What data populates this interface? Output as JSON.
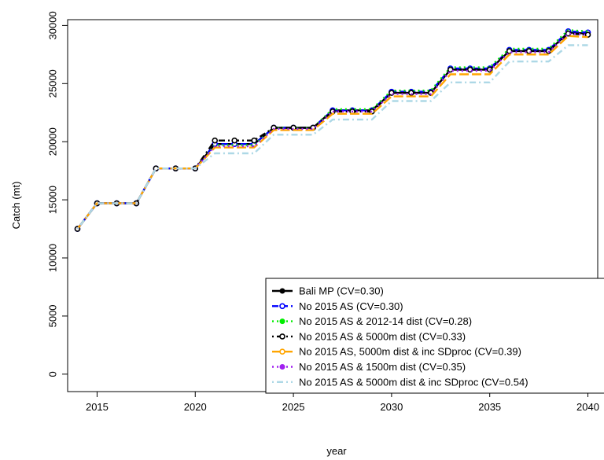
{
  "chart_data": {
    "type": "line",
    "title": "",
    "xlabel": "year",
    "ylabel": "Catch (mt)",
    "xlim": [
      2013.5,
      2040.5
    ],
    "ylim": [
      -1500,
      30500
    ],
    "x_ticks": [
      2015,
      2020,
      2025,
      2030,
      2035,
      2040
    ],
    "y_ticks": [
      0,
      5000,
      10000,
      15000,
      20000,
      25000,
      30000
    ],
    "grid": false,
    "legend_position": "bottom-right",
    "x": [
      2014,
      2015,
      2016,
      2017,
      2018,
      2019,
      2020,
      2021,
      2022,
      2023,
      2024,
      2025,
      2026,
      2027,
      2028,
      2029,
      2030,
      2031,
      2032,
      2033,
      2034,
      2035,
      2036,
      2037,
      2038,
      2039,
      2040
    ],
    "series": [
      {
        "name": "Bali MP (CV=0.30)",
        "color": "#000000",
        "dash": "solid",
        "marker": "filled-circle",
        "values": [
          12500,
          14700,
          14700,
          14700,
          17700,
          17700,
          17700,
          19800,
          19800,
          19800,
          21200,
          21200,
          21200,
          22700,
          22700,
          22700,
          24200,
          24200,
          24200,
          26200,
          26200,
          26200,
          27800,
          27800,
          27800,
          29400,
          29300
        ]
      },
      {
        "name": "No 2015 AS (CV=0.30)",
        "color": "#0000ff",
        "dash": "dashed",
        "marker": "open-circle",
        "values": [
          12500,
          14700,
          14700,
          14700,
          17700,
          17700,
          17700,
          19800,
          19800,
          19800,
          21200,
          21200,
          21200,
          22700,
          22700,
          22700,
          24300,
          24300,
          24300,
          26300,
          26300,
          26300,
          27900,
          27900,
          27900,
          29500,
          29400
        ]
      },
      {
        "name": "No 2015 AS & 2012-14 dist (CV=0.28)",
        "color": "#00ee00",
        "dash": "dotted",
        "marker": "filled-circle",
        "values": [
          12500,
          14700,
          14700,
          14700,
          17700,
          17700,
          17700,
          19700,
          19700,
          19700,
          21200,
          21200,
          21200,
          22800,
          22800,
          22800,
          24400,
          24400,
          24400,
          26400,
          26400,
          26400,
          28000,
          28000,
          28000,
          29600,
          29500
        ]
      },
      {
        "name": "No 2015 AS & 5000m dist (CV=0.33)",
        "color": "#000000",
        "dash": "dotdash",
        "marker": "open-circle",
        "values": [
          12500,
          14700,
          14700,
          14700,
          17700,
          17700,
          17700,
          20100,
          20100,
          20100,
          21200,
          21200,
          21200,
          22600,
          22600,
          22600,
          24200,
          24200,
          24200,
          26200,
          26200,
          26200,
          27800,
          27800,
          27800,
          29300,
          29200
        ]
      },
      {
        "name": "No 2015 AS, 5000m dist & inc SDproc (CV=0.39)",
        "color": "#ffa500",
        "dash": "longdash",
        "marker": "open-circle",
        "values": [
          12500,
          14700,
          14700,
          14700,
          17700,
          17700,
          17700,
          19500,
          19500,
          19500,
          21000,
          21000,
          21000,
          22400,
          22400,
          22400,
          23900,
          23900,
          23900,
          25800,
          25800,
          25800,
          27500,
          27500,
          27500,
          29100,
          29000
        ]
      },
      {
        "name": "No 2015 AS & 1500m dist (CV=0.35)",
        "color": "#a020f0",
        "dash": "dotted",
        "marker": "filled-circle",
        "values": [
          12500,
          14700,
          14700,
          14700,
          17700,
          17700,
          17700,
          19600,
          19600,
          19600,
          21100,
          21100,
          21100,
          22600,
          22600,
          22600,
          24100,
          24100,
          24100,
          26100,
          26100,
          26100,
          27700,
          27700,
          27700,
          29300,
          29200
        ]
      },
      {
        "name": "No 2015 AS & 5000m dist & inc SDproc (CV=0.54)",
        "color": "#add8e6",
        "dash": "dotdash",
        "marker": "none",
        "values": [
          12500,
          14700,
          14700,
          14700,
          17700,
          17700,
          17700,
          19000,
          19000,
          19000,
          20600,
          20600,
          20600,
          21900,
          21900,
          21900,
          23500,
          23500,
          23500,
          25100,
          25100,
          25100,
          26900,
          26900,
          26900,
          28300,
          28300
        ]
      }
    ]
  }
}
